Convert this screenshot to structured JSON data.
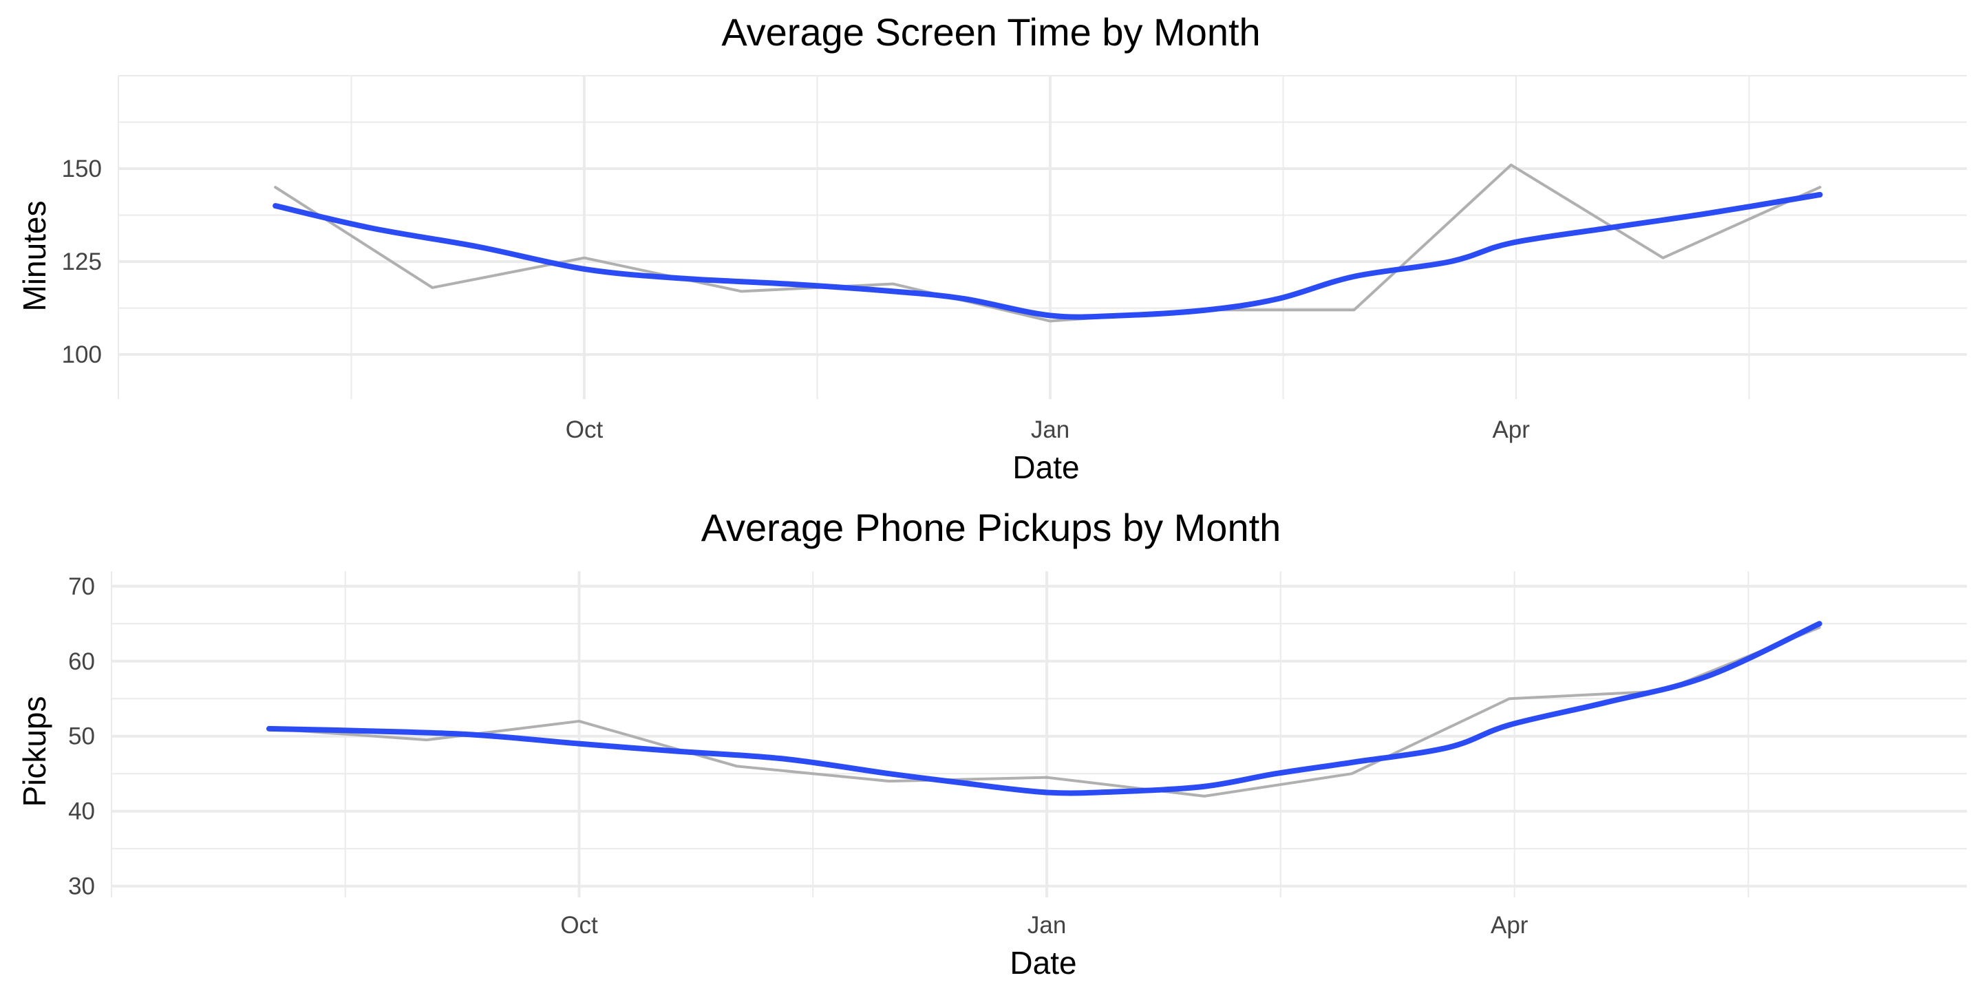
{
  "chart_data": [
    {
      "type": "line",
      "title": "Average Screen Time by Month",
      "xlabel": "Date",
      "ylabel": "Minutes",
      "x_ticks": [
        {
          "date": "2023-10-01",
          "label": "Oct"
        },
        {
          "date": "2024-01-01",
          "label": "Jan"
        },
        {
          "date": "2024-04-01",
          "label": "Apr"
        }
      ],
      "y_ticks": [
        100,
        125,
        150
      ],
      "xlim": [
        "2023-07-01",
        "2024-06-30"
      ],
      "ylim": [
        88,
        175
      ],
      "grid": true,
      "legend": "none",
      "series": [
        {
          "style": "raw",
          "color": "#b0b0b0",
          "points": [
            [
              "2023-08-01",
              145
            ],
            [
              "2023-09-01",
              118
            ],
            [
              "2023-10-01",
              126
            ],
            [
              "2023-11-01",
              117
            ],
            [
              "2023-12-01",
              119
            ],
            [
              "2024-01-01",
              109
            ],
            [
              "2024-02-01",
              112
            ],
            [
              "2024-03-01",
              112
            ],
            [
              "2024-04-01",
              151
            ],
            [
              "2024-05-01",
              126
            ],
            [
              "2024-06-01",
              145
            ]
          ]
        },
        {
          "style": "smooth",
          "color": "#2b4cf5",
          "points": [
            [
              "2023-08-01",
              140
            ],
            [
              "2023-08-20",
              134
            ],
            [
              "2023-09-10",
              129
            ],
            [
              "2023-10-01",
              123
            ],
            [
              "2023-10-20",
              120.5
            ],
            [
              "2023-11-10",
              119
            ],
            [
              "2023-12-01",
              117
            ],
            [
              "2023-12-15",
              115
            ],
            [
              "2024-01-01",
              110.5
            ],
            [
              "2024-01-15",
              110.5
            ],
            [
              "2024-02-01",
              112
            ],
            [
              "2024-02-15",
              115
            ],
            [
              "2024-03-01",
              121
            ],
            [
              "2024-03-20",
              125
            ],
            [
              "2024-04-01",
              130
            ],
            [
              "2024-04-20",
              134
            ],
            [
              "2024-05-10",
              138
            ],
            [
              "2024-06-01",
              143
            ]
          ]
        }
      ]
    },
    {
      "type": "line",
      "title": "Average Phone Pickups by Month",
      "xlabel": "Date",
      "ylabel": "Pickups",
      "x_ticks": [
        {
          "date": "2023-10-01",
          "label": "Oct"
        },
        {
          "date": "2024-01-01",
          "label": "Jan"
        },
        {
          "date": "2024-04-01",
          "label": "Apr"
        }
      ],
      "y_ticks": [
        30,
        40,
        50,
        60,
        70
      ],
      "xlim": [
        "2023-07-01",
        "2024-06-30"
      ],
      "ylim": [
        28.5,
        72
      ],
      "grid": true,
      "legend": "none",
      "series": [
        {
          "style": "raw",
          "color": "#b0b0b0",
          "points": [
            [
              "2023-08-01",
              51
            ],
            [
              "2023-09-01",
              49.5
            ],
            [
              "2023-10-01",
              52
            ],
            [
              "2023-11-01",
              46
            ],
            [
              "2023-12-01",
              44
            ],
            [
              "2024-01-01",
              44.5
            ],
            [
              "2024-02-01",
              42
            ],
            [
              "2024-03-01",
              45
            ],
            [
              "2024-04-01",
              55
            ],
            [
              "2024-05-01",
              56
            ],
            [
              "2024-06-01",
              64.5
            ]
          ]
        },
        {
          "style": "smooth",
          "color": "#2b4cf5",
          "points": [
            [
              "2023-08-01",
              51
            ],
            [
              "2023-08-20",
              50.7
            ],
            [
              "2023-09-10",
              50.2
            ],
            [
              "2023-10-01",
              49
            ],
            [
              "2023-10-20",
              48
            ],
            [
              "2023-11-10",
              47
            ],
            [
              "2023-12-01",
              45
            ],
            [
              "2023-12-15",
              43.8
            ],
            [
              "2024-01-01",
              42.5
            ],
            [
              "2024-01-15",
              42.6
            ],
            [
              "2024-02-01",
              43.3
            ],
            [
              "2024-02-15",
              45
            ],
            [
              "2024-03-01",
              46.5
            ],
            [
              "2024-03-20",
              48.5
            ],
            [
              "2024-04-01",
              51.5
            ],
            [
              "2024-04-20",
              54.5
            ],
            [
              "2024-05-10",
              58
            ],
            [
              "2024-06-01",
              65
            ]
          ]
        }
      ]
    }
  ]
}
